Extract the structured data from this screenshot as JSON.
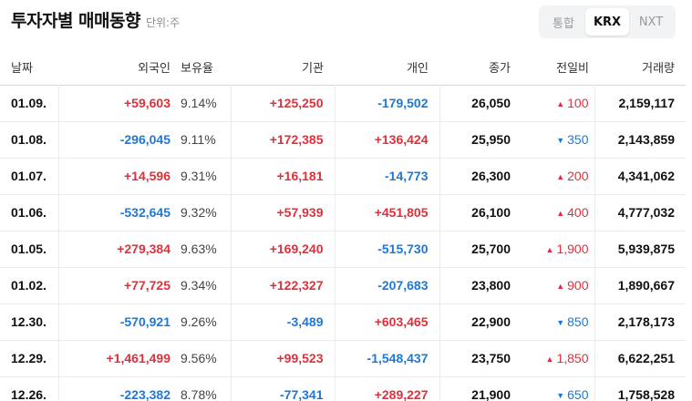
{
  "header": {
    "title": "투자자별 매매동향",
    "unit": "단위:주"
  },
  "market_tabs": [
    {
      "label": "통합",
      "active": false
    },
    {
      "label": "KRX",
      "active": true
    },
    {
      "label": "NXT",
      "active": false
    }
  ],
  "columns": {
    "date": "날짜",
    "foreign": "외국인",
    "hold": "보유율",
    "inst": "기관",
    "indiv": "개인",
    "close": "종가",
    "change": "전일비",
    "volume": "거래량"
  },
  "colors": {
    "up": "#e0303a",
    "down": "#1e78d8"
  },
  "rows": [
    {
      "date": "01.09.",
      "foreign": "+59,603",
      "hold": "9.14%",
      "inst": "+125,250",
      "indiv": "-179,502",
      "close": "26,050",
      "change_dir": "up",
      "change": "100",
      "volume": "2,159,117"
    },
    {
      "date": "01.08.",
      "foreign": "-296,045",
      "hold": "9.11%",
      "inst": "+172,385",
      "indiv": "+136,424",
      "close": "25,950",
      "change_dir": "down",
      "change": "350",
      "volume": "2,143,859"
    },
    {
      "date": "01.07.",
      "foreign": "+14,596",
      "hold": "9.31%",
      "inst": "+16,181",
      "indiv": "-14,773",
      "close": "26,300",
      "change_dir": "up",
      "change": "200",
      "volume": "4,341,062"
    },
    {
      "date": "01.06.",
      "foreign": "-532,645",
      "hold": "9.32%",
      "inst": "+57,939",
      "indiv": "+451,805",
      "close": "26,100",
      "change_dir": "up",
      "change": "400",
      "volume": "4,777,032"
    },
    {
      "date": "01.05.",
      "foreign": "+279,384",
      "hold": "9.63%",
      "inst": "+169,240",
      "indiv": "-515,730",
      "close": "25,700",
      "change_dir": "up",
      "change": "1,900",
      "volume": "5,939,875"
    },
    {
      "date": "01.02.",
      "foreign": "+77,725",
      "hold": "9.34%",
      "inst": "+122,327",
      "indiv": "-207,683",
      "close": "23,800",
      "change_dir": "up",
      "change": "900",
      "volume": "1,890,667"
    },
    {
      "date": "12.30.",
      "foreign": "-570,921",
      "hold": "9.26%",
      "inst": "-3,489",
      "indiv": "+603,465",
      "close": "22,900",
      "change_dir": "down",
      "change": "850",
      "volume": "2,178,173"
    },
    {
      "date": "12.29.",
      "foreign": "+1,461,499",
      "hold": "9.56%",
      "inst": "+99,523",
      "indiv": "-1,548,437",
      "close": "23,750",
      "change_dir": "up",
      "change": "1,850",
      "volume": "6,622,251"
    },
    {
      "date": "12.26.",
      "foreign": "-223,382",
      "hold": "8.78%",
      "inst": "-77,341",
      "indiv": "+289,227",
      "close": "21,900",
      "change_dir": "down",
      "change": "650",
      "volume": "1,758,528"
    }
  ]
}
